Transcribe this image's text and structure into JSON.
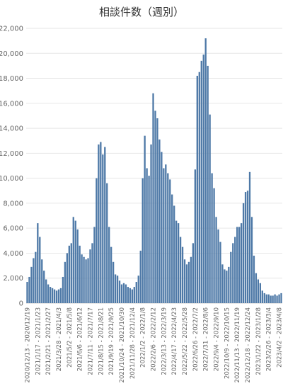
{
  "chart_data": {
    "type": "bar",
    "title": "相談件数（週別）",
    "xlabel": "",
    "ylabel": "",
    "ylim": [
      0,
      22000
    ],
    "yticks": [
      0,
      2000,
      4000,
      6000,
      8000,
      10000,
      12000,
      14000,
      16000,
      18000,
      20000,
      22000
    ],
    "ytick_labels": [
      "0",
      "2,000",
      "4,000",
      "6,000",
      "8,000",
      "10,000",
      "12,000",
      "14,000",
      "16,000",
      "18,000",
      "20,000",
      "22,000"
    ],
    "grid": true,
    "bar_color": "#4e79a7",
    "x_tick_labels": [
      "2020/12/13 - 2020/12/19",
      "2021/1/17 - 2021/1/23",
      "2021/2/21 - 2021/2/27",
      "2021/3/28 - 2021/4/3",
      "2021/5/2 - 2021/5/8",
      "2021/6/6 - 2021/6/12",
      "2021/7/11 - 2021/7/17",
      "2021/8/15 - 2021/8/21",
      "2021/9/19 - 2021/9/25",
      "2021/10/24 - 2021/10/30",
      "2021/11/28 - 2021/12/4",
      "2022/1/2 - 2022/1/8",
      "2022/2/6 - 2022/2/12",
      "2022/3/13 - 2022/3/19",
      "2022/4/17 - 2022/4/23",
      "2022/5/22 - 2022/5/28",
      "2022/6/26 - 2022/7/2",
      "2022/7/31 - 2022/8/6",
      "2022/9/4 - 2022/9/10",
      "2022/10/9 - 2022/10/15",
      "2022/11/13 - 2022/11/19",
      "2022/12/18 - 2022/12/24",
      "2023/1/22 - 2023/1/28",
      "2023/2/26 - 2023/3/4",
      "2023/4/2 - 2023/4/8"
    ],
    "x_tick_every": 5,
    "values": [
      1700,
      2100,
      2900,
      3600,
      4100,
      6400,
      5300,
      3500,
      2600,
      1900,
      1500,
      1300,
      1200,
      1100,
      1000,
      1100,
      1200,
      2100,
      3300,
      4000,
      4600,
      4800,
      6900,
      6600,
      5900,
      4600,
      3900,
      3700,
      3500,
      3600,
      4300,
      4800,
      6100,
      10000,
      12700,
      12900,
      11900,
      12500,
      9600,
      6100,
      4500,
      3300,
      2300,
      2200,
      1800,
      1500,
      1600,
      1500,
      1300,
      1200,
      1100,
      1300,
      1700,
      2200,
      4200,
      10000,
      13400,
      10800,
      10200,
      12700,
      16800,
      15400,
      14800,
      13100,
      12100,
      10800,
      11100,
      10400,
      9900,
      8700,
      7800,
      6600,
      6400,
      5300,
      4500,
      3500,
      3100,
      3300,
      3700,
      4800,
      10700,
      18200,
      18500,
      19400,
      19900,
      21200,
      19000,
      15100,
      10400,
      9200,
      6900,
      5900,
      4900,
      3100,
      2700,
      2600,
      2900,
      4100,
      4800,
      5300,
      6100,
      6100,
      6400,
      8000,
      8900,
      9000,
      10500,
      6900,
      3800,
      2400,
      1900,
      1600,
      1000,
      800,
      700,
      700,
      600,
      600,
      700,
      600,
      700,
      800
    ]
  }
}
